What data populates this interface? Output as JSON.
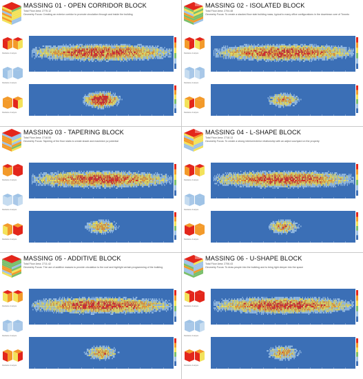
{
  "panels": [
    {
      "title": "MASSING 01 - OPEN CORRIDOR BLOCK",
      "area": "Total Floor Area: 2775.12",
      "focus": "Geometry Focus: Creating an exterior corridor to promote circulation through and inside the building"
    },
    {
      "title": "MASSING 02 - ISOLATED BLOCK",
      "area": "Total Floor Area: 2704.48",
      "focus": "Geometry Focus: To create a stacked floor slab building mass; typical to many office configurations in the downtown core of Toronto"
    },
    {
      "title": "MASSING 03 - TAPERING BLOCK",
      "area": "Total Floor Area: 2718.55",
      "focus": "Geometry Focus: Tapering of the floor slabs to create shade and maximize pv potential"
    },
    {
      "title": "MASSING 04 - L-SHAPE BLOCK",
      "area": "Total Floor Area: 2718.13",
      "focus": "Geometry Focus: To create a strong interior/exterior relationship with an adject courtyard on the property"
    },
    {
      "title": "MASSING 05 - ADDITIVE BLOCK",
      "area": "Total Floor Area: 2711.42",
      "focus": "Geometry Focus: The use of additive masses to provide circulation to the roof and highlight certain programming of the building"
    },
    {
      "title": "MASSING 06 - U-SHAPE BLOCK",
      "area": "Total Floor Area: 2706.43",
      "focus": "Geometry Focus: To draw people into the building and to bring light deeper into the space"
    }
  ],
  "thumb_labels": [
    "Radiation Analysis",
    "Radiation Analysis",
    "Radiation Analysis"
  ],
  "colors": {
    "blue": "#3b6fb6",
    "lightblue": "#9fc3e6",
    "yellow": "#f3e25a",
    "orange": "#f39a2a",
    "red": "#e3261b",
    "green": "#7bbf6a"
  }
}
